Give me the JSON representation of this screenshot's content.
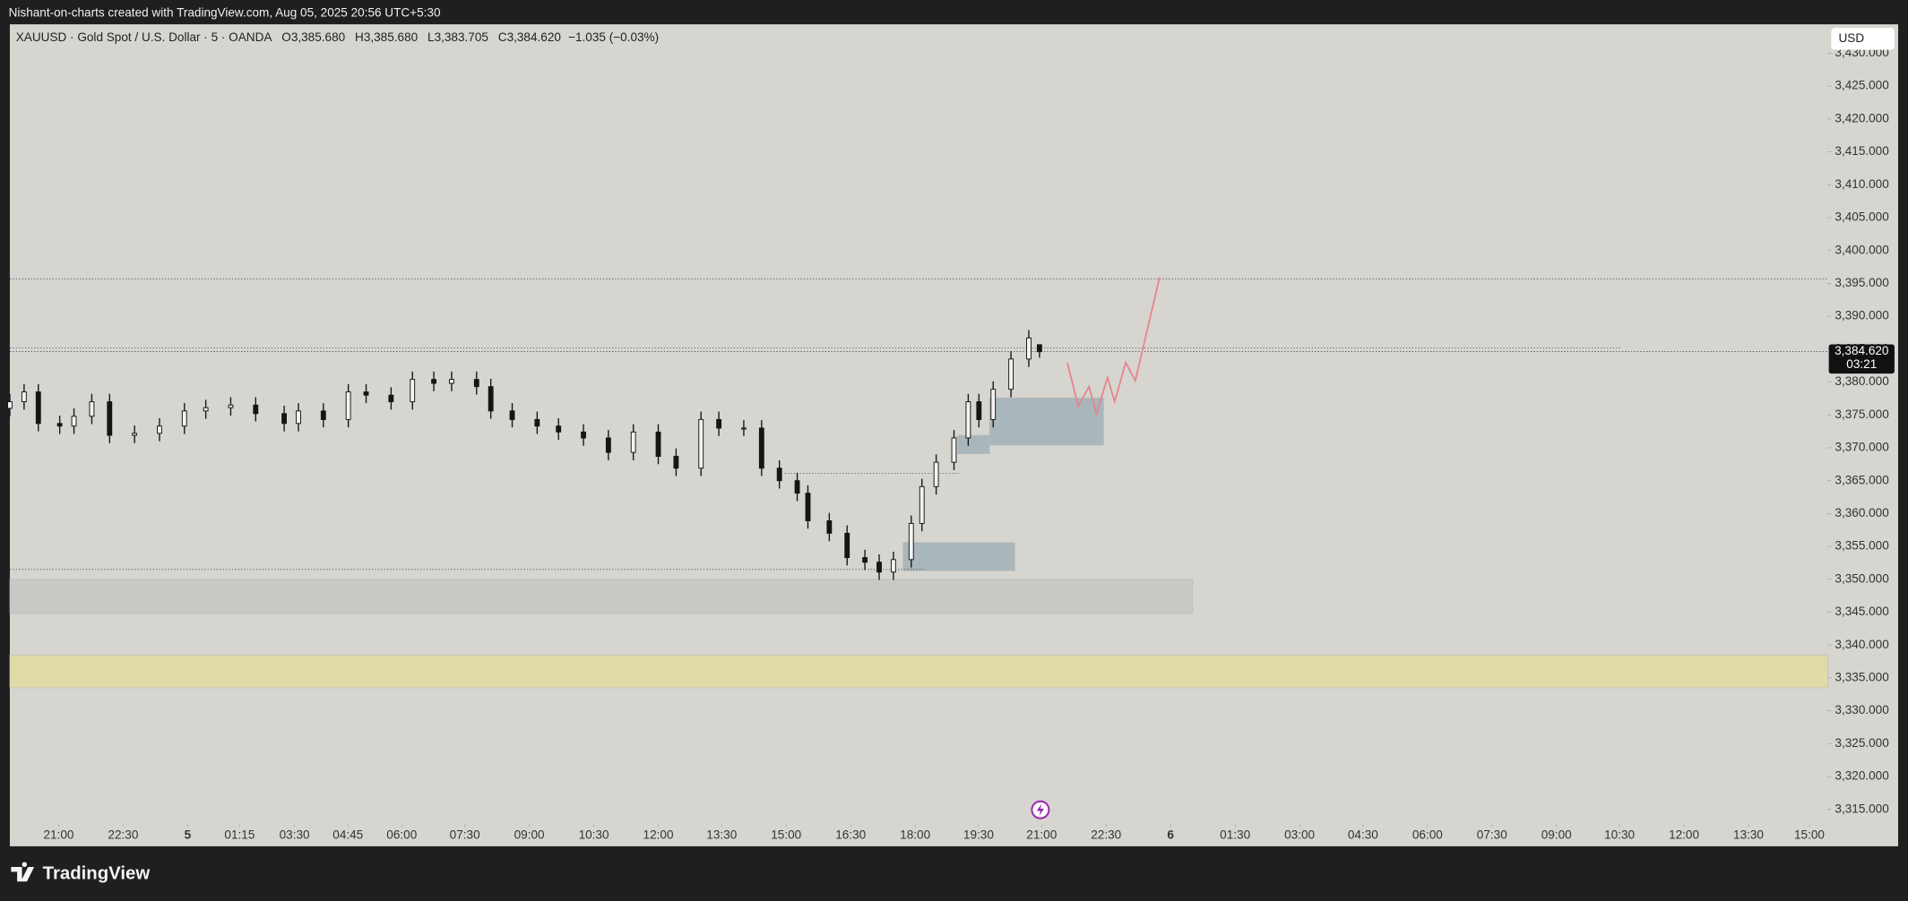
{
  "top_bar": {
    "text": "Nishant-on-charts created with TradingView.com, Aug 05, 2025 20:56 UTC+5:30"
  },
  "chart_data": {
    "type": "candlestick",
    "title": "XAUUSD · Gold Spot / U.S. Dollar · 5 · OANDA",
    "ohlc_legend": [
      {
        "key": "O",
        "value": "3,385.680"
      },
      {
        "key": "H",
        "value": "3,385.680"
      },
      {
        "key": "L",
        "value": "3,383.705"
      },
      {
        "key": "C",
        "value": "3,384.620"
      }
    ],
    "change": "−1.035 (−0.03%)",
    "currency": "USD",
    "x": [
      0,
      4,
      8,
      14,
      18,
      23,
      28,
      35,
      42,
      49,
      55,
      62,
      69,
      77,
      81,
      88,
      95,
      100,
      107,
      113,
      119,
      124,
      131,
      135,
      141,
      148,
      154,
      161,
      168,
      175,
      182,
      187,
      194,
      199,
      206,
      211,
      216,
      221,
      224,
      230,
      235,
      240,
      244,
      248,
      253,
      256,
      260,
      265,
      269,
      272,
      276,
      281,
      286,
      289
    ],
    "open": [
      3376,
      3377,
      3378.5,
      3373.7,
      3373.3,
      3374.8,
      3377,
      3371.9,
      3372.2,
      3373.3,
      3375.6,
      3376.1,
      3376.5,
      3375.2,
      3373.7,
      3375.6,
      3374.3,
      3378.5,
      3378,
      3377,
      3380.4,
      3379.8,
      3380.4,
      3379.3,
      3375.6,
      3374.3,
      3373.3,
      3372.4,
      3371.5,
      3369.3,
      3372.4,
      3368.7,
      3366.9,
      3374.3,
      3373,
      3373,
      3366.9,
      3365,
      3363.1,
      3358.9,
      3357,
      3353.3,
      3352.6,
      3351.1,
      3353,
      3358.5,
      3364.1,
      3367.8,
      3371.5,
      3377,
      3374.3,
      3378.9,
      3383.5,
      3385.68
    ],
    "high": [
      3378.2,
      3379.7,
      3379.7,
      3374.9,
      3376,
      3378.2,
      3378.2,
      3373.4,
      3374.5,
      3376.8,
      3377.3,
      3377.7,
      3377.7,
      3376.4,
      3376.8,
      3376.8,
      3379.7,
      3379.7,
      3379.2,
      3381.6,
      3381.6,
      3381.6,
      3381.6,
      3380.5,
      3376.8,
      3375.5,
      3374.5,
      3373.6,
      3372.7,
      3373.6,
      3373.6,
      3369.9,
      3375.5,
      3375.5,
      3374.2,
      3374.2,
      3368.1,
      3366.2,
      3364.3,
      3360.1,
      3358.2,
      3354.5,
      3353.8,
      3354.2,
      3359.7,
      3365.3,
      3369,
      3372.7,
      3378.2,
      3378.2,
      3380.1,
      3384.7,
      3387.9,
      3385.68
    ],
    "low": [
      3374.8,
      3375.8,
      3372.5,
      3372.1,
      3372.1,
      3373.6,
      3370.7,
      3370.7,
      3371,
      3372.1,
      3374.4,
      3374.9,
      3374,
      3372.5,
      3372.5,
      3373.1,
      3373.1,
      3376.8,
      3375.8,
      3375.8,
      3378.6,
      3378.6,
      3378.1,
      3374.4,
      3373.1,
      3372.1,
      3371.2,
      3370.3,
      3368.1,
      3368.1,
      3367.5,
      3365.7,
      3365.7,
      3371.8,
      3371.8,
      3365.7,
      3363.8,
      3361.9,
      3357.7,
      3355.8,
      3352.1,
      3351.4,
      3349.9,
      3349.9,
      3351.8,
      3357.3,
      3362.9,
      3366.6,
      3370.3,
      3373.1,
      3373.1,
      3377.7,
      3382.3,
      3383.705
    ],
    "close": [
      3377,
      3378.5,
      3373.7,
      3373.3,
      3374.8,
      3377,
      3371.9,
      3372.2,
      3373.3,
      3375.6,
      3376.1,
      3376.5,
      3375.2,
      3373.7,
      3375.6,
      3374.3,
      3378.5,
      3378,
      3377,
      3380.4,
      3379.8,
      3380.4,
      3379.3,
      3375.6,
      3374.3,
      3373.3,
      3372.4,
      3371.5,
      3369.3,
      3372.4,
      3368.7,
      3366.9,
      3374.3,
      3373,
      3373,
      3366.9,
      3365,
      3363.1,
      3358.9,
      3357,
      3353.3,
      3352.6,
      3351.1,
      3353,
      3358.5,
      3364.1,
      3367.8,
      3371.5,
      3377,
      3374.3,
      3378.9,
      3383.5,
      3386.7,
      3384.62
    ],
    "up_color": "#f4f4f2",
    "down_color": "#151515",
    "wick_color": "#151515",
    "xlim": [
      0,
      510.2
    ],
    "xticks": [
      {
        "value": 13.7,
        "label": "21:00"
      },
      {
        "value": 31.8,
        "label": "22:30"
      },
      {
        "value": 49.9,
        "label": "5"
      },
      {
        "value": 64.5,
        "label": "01:15"
      },
      {
        "value": 79.9,
        "label": "03:30"
      },
      {
        "value": 94.9,
        "label": "04:45"
      },
      {
        "value": 110,
        "label": "06:00"
      },
      {
        "value": 127.7,
        "label": "07:30"
      },
      {
        "value": 145.8,
        "label": "09:00"
      },
      {
        "value": 163.9,
        "label": "10:30"
      },
      {
        "value": 182,
        "label": "12:00"
      },
      {
        "value": 199.8,
        "label": "13:30"
      },
      {
        "value": 217.9,
        "label": "15:00"
      },
      {
        "value": 236,
        "label": "16:30"
      },
      {
        "value": 254.1,
        "label": "18:00"
      },
      {
        "value": 271.9,
        "label": "19:30"
      },
      {
        "value": 289.6,
        "label": "21:00"
      },
      {
        "value": 307.7,
        "label": "22:30"
      },
      {
        "value": 325.8,
        "label": "6"
      },
      {
        "value": 343.9,
        "label": "01:30"
      },
      {
        "value": 362,
        "label": "03:00"
      },
      {
        "value": 379.8,
        "label": "04:30"
      },
      {
        "value": 397.9,
        "label": "06:00"
      },
      {
        "value": 416,
        "label": "07:30"
      },
      {
        "value": 434.1,
        "label": "09:00"
      },
      {
        "value": 451.8,
        "label": "10:30"
      },
      {
        "value": 469.9,
        "label": "12:00"
      },
      {
        "value": 488,
        "label": "13:30"
      },
      {
        "value": 505.1,
        "label": "15:00"
      }
    ],
    "ylim": [
      3309.4,
      3434.4
    ],
    "yticks": [
      {
        "value": 3315,
        "label": "3,315.000"
      },
      {
        "value": 3320,
        "label": "3,320.000"
      },
      {
        "value": 3325,
        "label": "3,325.000"
      },
      {
        "value": 3330,
        "label": "3,330.000"
      },
      {
        "value": 3335,
        "label": "3,335.000"
      },
      {
        "value": 3340,
        "label": "3,340.000"
      },
      {
        "value": 3345,
        "label": "3,345.000"
      },
      {
        "value": 3350,
        "label": "3,350.000"
      },
      {
        "value": 3355,
        "label": "3,355.000"
      },
      {
        "value": 3360,
        "label": "3,360.000"
      },
      {
        "value": 3365,
        "label": "3,365.000"
      },
      {
        "value": 3370,
        "label": "3,370.000"
      },
      {
        "value": 3375,
        "label": "3,375.000"
      },
      {
        "value": 3380,
        "label": "3,380.000"
      },
      {
        "value": 3385,
        "label": "3,385.000"
      },
      {
        "value": 3390,
        "label": "3,390.000"
      },
      {
        "value": 3395,
        "label": "3,395.000"
      },
      {
        "value": 3400,
        "label": "3,400.000"
      },
      {
        "value": 3405,
        "label": "3,405.000"
      },
      {
        "value": 3410,
        "label": "3,410.000"
      },
      {
        "value": 3415,
        "label": "3,415.000"
      },
      {
        "value": 3420,
        "label": "3,420.000"
      },
      {
        "value": 3425,
        "label": "3,425.000"
      },
      {
        "value": 3430,
        "label": "3,430.000"
      }
    ],
    "last_price": {
      "label": "3,384.620",
      "countdown": "03:21"
    },
    "zones": [
      {
        "x": [
          0,
          332
        ],
        "y": [
          3344.8,
          3350
        ],
        "color": "#c8c8c5"
      },
      {
        "x": [
          0,
          510.2
        ],
        "y": [
          3333.5,
          3338.5
        ],
        "color": "#e1dba8"
      },
      {
        "x": [
          250.7,
          282.1
        ],
        "y": [
          3351.3,
          3355.6
        ],
        "color": "#a9b6bb"
      },
      {
        "x": [
          266,
          275
        ],
        "y": [
          3369.1,
          3371.9
        ],
        "color": "#a9b6bb"
      },
      {
        "x": [
          275,
          307
        ],
        "y": [
          3370.4,
          3377.6
        ],
        "color": "#a9b6bb"
      }
    ],
    "levels": [
      {
        "x": [
          0,
          510.2
        ],
        "y": 3395.7
      },
      {
        "x": [
          0,
          452
        ],
        "y": 3385.2
      },
      {
        "x": [
          0,
          257
        ],
        "y": 3351.5
      },
      {
        "x": [
          217.5,
          266.4
        ],
        "y": 3366.1
      }
    ],
    "projection": {
      "color": "#e8838b",
      "x": [
        296.8,
        299.9,
        302.9,
        305,
        308.1,
        310.1,
        313.2,
        315.9,
        322.7
      ],
      "y": [
        3382.96,
        3376.3,
        3379.3,
        3375.2,
        3380.7,
        3377,
        3382.96,
        3380.2,
        3395.9
      ]
    }
  },
  "footer": {
    "logo": "TradingView"
  }
}
